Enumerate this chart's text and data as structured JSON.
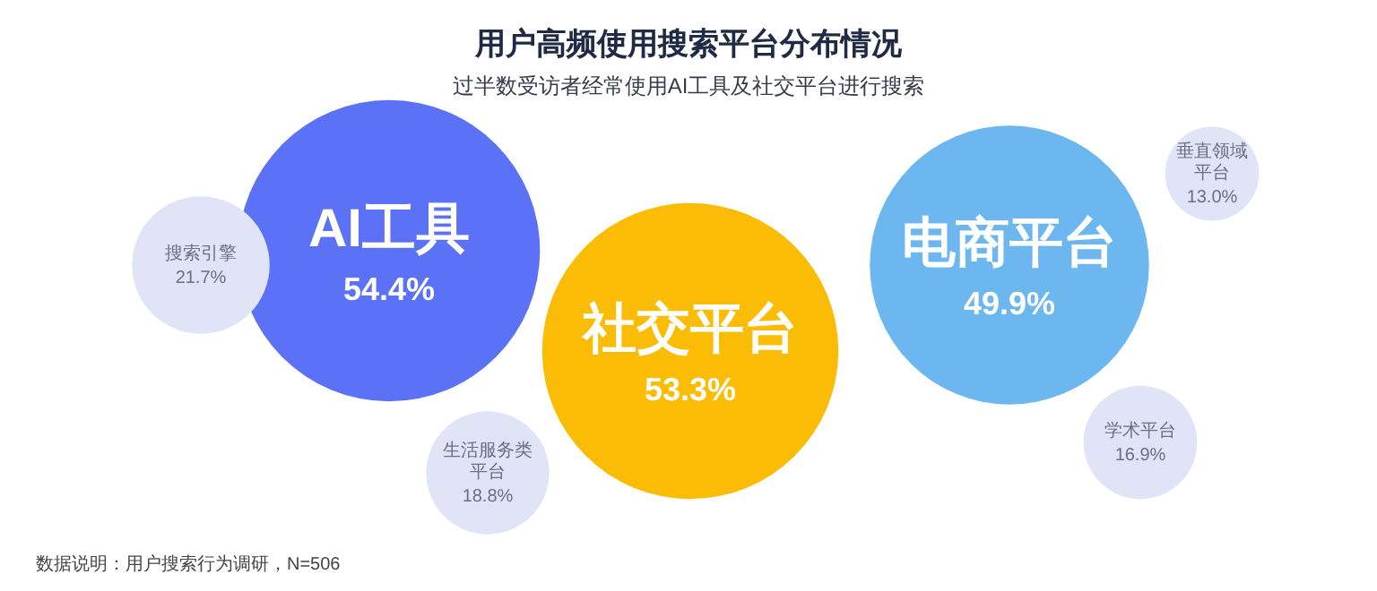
{
  "chart_data": {
    "type": "other",
    "title": "用户高频使用搜索平台分布情况",
    "subtitle": "过半数受访者经常使用AI工具及社交平台进行搜索",
    "categories": [
      "AI工具",
      "社交平台",
      "电商平台",
      "搜索引擎",
      "生活服务类平台",
      "垂直领域平台",
      "学术平台"
    ],
    "values": [
      54.4,
      53.3,
      49.9,
      21.7,
      18.8,
      13.0,
      16.9
    ],
    "value_labels": [
      "54.4%",
      "53.3%",
      "49.9%",
      "21.7%",
      "18.8%",
      "13.0%",
      "16.9%"
    ],
    "colors": [
      "#5b72f6",
      "#fbbc05",
      "#6db7f0",
      "#e1e4f6",
      "#e1e4f6",
      "#e1e4f6",
      "#e1e4f6"
    ],
    "annotations": [
      "数据说明：用户搜索行为调研，N=506"
    ]
  }
}
